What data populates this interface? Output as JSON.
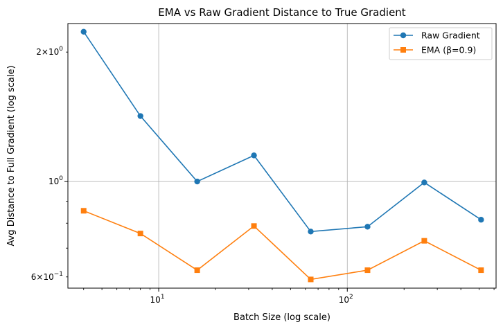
{
  "chart_data": {
    "type": "line",
    "title": "EMA vs Raw Gradient Distance to True Gradient",
    "xlabel": "Batch Size (log scale)",
    "ylabel": "Avg Distance to Full Gradient (log scale)",
    "xscale": "log",
    "yscale": "log",
    "xlim": [
      3.3,
      615
    ],
    "ylim": [
      0.565,
      2.33
    ],
    "grid": true,
    "legend_position": "top-right",
    "x": [
      4,
      8,
      16,
      32,
      64,
      128,
      256,
      512
    ],
    "x_ticks": [
      {
        "value": 10,
        "base": "10",
        "exp": "1"
      },
      {
        "value": 100,
        "base": "10",
        "exp": "2"
      }
    ],
    "y_ticks": [
      {
        "value": 2.0,
        "mant": "2",
        "base": "10",
        "exp": "0",
        "plain": false
      },
      {
        "value": 1.0,
        "label": "10",
        "exp": "0",
        "plain": true
      },
      {
        "value": 0.6,
        "mant": "6",
        "base": "10",
        "exp": "−1",
        "plain": false
      }
    ],
    "series": [
      {
        "name": "Raw Gradient",
        "color": "#1f77b4",
        "marker": "circle",
        "values": [
          2.23,
          1.42,
          1.0,
          1.15,
          0.765,
          0.785,
          0.995,
          0.815
        ]
      },
      {
        "name": "EMA (β=0.9)",
        "color": "#ff7f0e",
        "marker": "square",
        "values": [
          0.855,
          0.757,
          0.622,
          0.788,
          0.592,
          0.622,
          0.728,
          0.622
        ]
      }
    ]
  }
}
